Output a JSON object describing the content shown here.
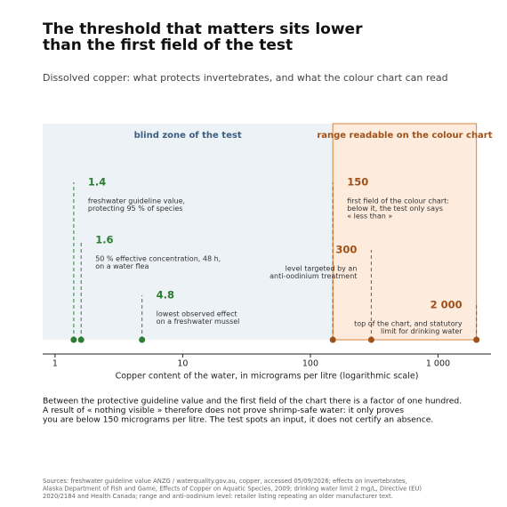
{
  "chart_data": {
    "type": "annotated-points",
    "title": [
      "The threshold that matters sits lower",
      "than the first field of the test"
    ],
    "subtitle": "Dissolved copper: what protects invertebrates, and what the colour chart can read",
    "x_label": "Copper content of the water, in micrograms per litre (logarithmic scale)",
    "xscale": "log",
    "xlim": [
      0.8,
      2600
    ],
    "xticks": [
      1,
      10,
      100,
      {
        "value": 1000,
        "label": "1 000"
      }
    ],
    "regions": [
      {
        "label": "blind zone of the test",
        "end": 150,
        "fill": "#edf2f6",
        "text_color": "#3b5f80"
      },
      {
        "label": "range readable on the colour chart",
        "start": 150,
        "end": 2000,
        "fill": "#fdebdd",
        "stroke": "#d9843b",
        "text_color": "#a0511a"
      }
    ],
    "series": [
      {
        "color": "#2e7d32",
        "values": [
          1.4,
          1.6,
          4.8
        ],
        "notes": [
          [
            "freshwater guideline value,",
            "protecting 95 % of species"
          ],
          [
            "50 % effective concentration, 48 h,",
            "on a water flea"
          ],
          [
            "lowest observed effect",
            "on a freshwater mussel"
          ]
        ]
      },
      {
        "color": "#a0511a",
        "values": [
          150,
          300,
          2000
        ],
        "value_labels": [
          "150",
          "300",
          "2 000"
        ],
        "notes": [
          [
            "first field of the colour chart:",
            "below it, the test only says",
            "« less than »"
          ],
          [
            "level targeted by an",
            "anti-oodinium treatment"
          ],
          [
            "top of the chart, and statutory",
            "limit for drinking water"
          ]
        ]
      }
    ],
    "body": [
      "Between the protective guideline value and the first field of the chart there is a factor of one hundred.",
      "A result of « nothing visible » therefore does not prove shrimp-safe water: it only proves",
      "you are below 150 micrograms per litre. The test spots an input, it does not certify an absence."
    ],
    "sources": [
      "Sources: freshwater guideline value ANZG / waterquality.gov.au, copper, accessed 05/09/2026; effects on invertebrates,",
      "Alaska Department of Fish and Game, Effects of Copper on Aquatic Species, 2009; drinking water limit 2 mg/L, Directive (EU)",
      "2020/2184 and Health Canada; range and anti-oodinium level: retailer listing repeating an older manufacturer text."
    ]
  }
}
